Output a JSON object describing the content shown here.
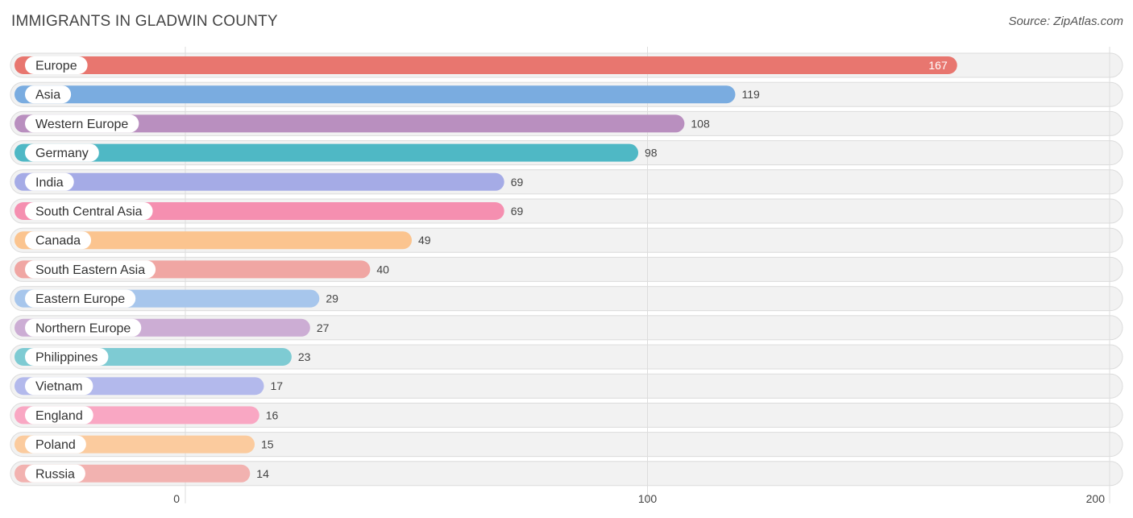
{
  "header": {
    "title": "IMMIGRANTS IN GLADWIN COUNTY",
    "source": "Source: ZipAtlas.com"
  },
  "chart_data": {
    "type": "bar",
    "orientation": "horizontal",
    "title": "IMMIGRANTS IN GLADWIN COUNTY",
    "xlim": [
      0,
      200
    ],
    "xticks": [
      0,
      100,
      200
    ],
    "grid": true,
    "categories": [
      "Europe",
      "Asia",
      "Western Europe",
      "Germany",
      "India",
      "South Central Asia",
      "Canada",
      "South Eastern Asia",
      "Eastern Europe",
      "Northern Europe",
      "Philippines",
      "Vietnam",
      "England",
      "Poland",
      "Russia"
    ],
    "values": [
      167,
      119,
      108,
      98,
      69,
      69,
      49,
      40,
      29,
      27,
      23,
      17,
      16,
      15,
      14
    ],
    "colors": [
      "#e8766f",
      "#7aace0",
      "#b98fbf",
      "#4fb8c5",
      "#a5abe6",
      "#f58fb0",
      "#fbc48f",
      "#f0a6a3",
      "#a7c6ec",
      "#ccadd4",
      "#7ecbd3",
      "#b3b9ec",
      "#f9a7c3",
      "#fbcb9e",
      "#f2b2b0"
    ]
  }
}
